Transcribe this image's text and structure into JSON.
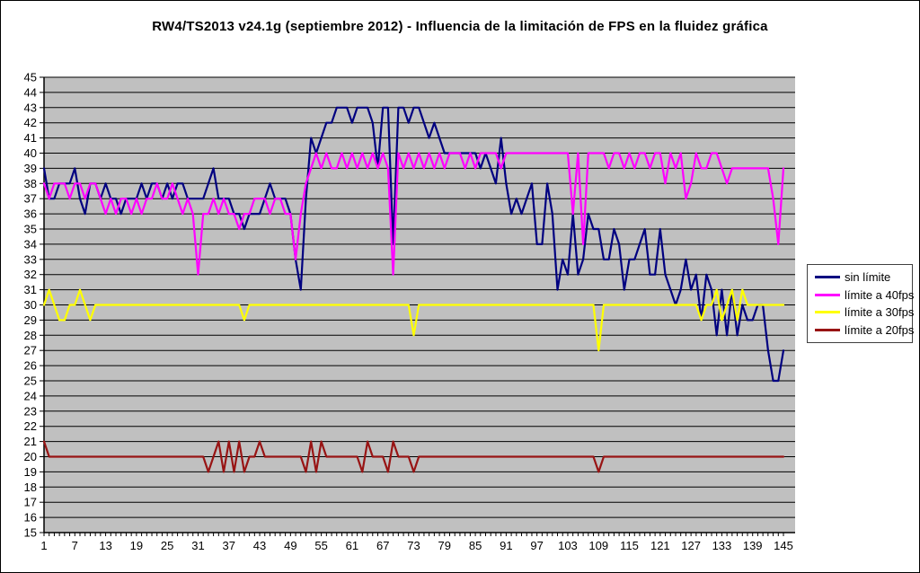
{
  "chart_data": {
    "type": "line",
    "title": "RW4/TS2013 v24.1g (septiembre 2012) - Influencia de la limitación de FPS en la fluidez gráfica",
    "xlabel": "",
    "ylabel": "",
    "x_min": 1,
    "x_max": 145,
    "x_tick_labels": [
      1,
      7,
      13,
      19,
      25,
      31,
      37,
      43,
      49,
      55,
      61,
      67,
      73,
      79,
      85,
      91,
      97,
      103,
      109,
      115,
      121,
      127,
      133,
      139,
      145
    ],
    "ylim": [
      15,
      45
    ],
    "y_tick_step": 1,
    "grid": "horizontal",
    "plot_bg": "#C0C0C0",
    "axis_color": "#000000",
    "gridline_color": "#000000",
    "legend_position": "right",
    "series": [
      {
        "name": "sin límite",
        "color": "#000080",
        "values": [
          39,
          37,
          37,
          38,
          38,
          38,
          39,
          37,
          36,
          38,
          38,
          37,
          38,
          37,
          37,
          36,
          37,
          37,
          37,
          38,
          37,
          38,
          38,
          37,
          38,
          37,
          38,
          38,
          37,
          37,
          37,
          37,
          38,
          39,
          37,
          37,
          37,
          36,
          36,
          35,
          36,
          36,
          36,
          37,
          38,
          37,
          37,
          37,
          36,
          33,
          31,
          37,
          41,
          40,
          41,
          42,
          42,
          43,
          43,
          43,
          42,
          43,
          43,
          43,
          42,
          39,
          43,
          43,
          34,
          43,
          43,
          42,
          43,
          43,
          42,
          41,
          42,
          41,
          40,
          40,
          40,
          40,
          40,
          40,
          40,
          39,
          40,
          39,
          38,
          41,
          38,
          36,
          37,
          36,
          37,
          38,
          34,
          34,
          38,
          36,
          31,
          33,
          32,
          36,
          32,
          33,
          36,
          35,
          35,
          33,
          33,
          35,
          34,
          31,
          33,
          33,
          34,
          35,
          32,
          32,
          35,
          32,
          31,
          30,
          31,
          33,
          31,
          32,
          29,
          32,
          31,
          28,
          31,
          28,
          31,
          28,
          30,
          29,
          29,
          30,
          30,
          27,
          25,
          25,
          27
        ]
      },
      {
        "name": "límite a 40fps",
        "color": "#FF00FF",
        "values": [
          38,
          37,
          38,
          38,
          38,
          37,
          38,
          38,
          37,
          38,
          38,
          37,
          36,
          37,
          36,
          37,
          37,
          36,
          37,
          36,
          37,
          37,
          38,
          37,
          37,
          38,
          37,
          36,
          37,
          36,
          32,
          36,
          36,
          37,
          36,
          37,
          36,
          36,
          35,
          36,
          36,
          37,
          37,
          37,
          36,
          37,
          37,
          36,
          36,
          33,
          36,
          38,
          39,
          40,
          39,
          40,
          39,
          39,
          40,
          39,
          40,
          39,
          40,
          39,
          40,
          39,
          40,
          39,
          32,
          40,
          39,
          40,
          39,
          40,
          39,
          40,
          39,
          40,
          39,
          40,
          40,
          40,
          39,
          40,
          39,
          40,
          40,
          40,
          40,
          39,
          40,
          40,
          40,
          40,
          40,
          40,
          40,
          40,
          40,
          40,
          40,
          40,
          40,
          36,
          40,
          34,
          40,
          40,
          40,
          40,
          39,
          40,
          40,
          39,
          40,
          39,
          40,
          40,
          39,
          40,
          40,
          38,
          40,
          39,
          40,
          37,
          38,
          40,
          39,
          39,
          40,
          40,
          39,
          38,
          39,
          39,
          39,
          39,
          39,
          39,
          39,
          39,
          37,
          34,
          39
        ]
      },
      {
        "name": "límite a 30fps",
        "color": "#FFFF00",
        "values": [
          30,
          31,
          30,
          29,
          29,
          30,
          30,
          31,
          30,
          29,
          30,
          30,
          30,
          30,
          30,
          30,
          30,
          30,
          30,
          30,
          30,
          30,
          30,
          30,
          30,
          30,
          30,
          30,
          30,
          30,
          30,
          30,
          30,
          30,
          30,
          30,
          30,
          30,
          30,
          29,
          30,
          30,
          30,
          30,
          30,
          30,
          30,
          30,
          30,
          30,
          30,
          30,
          30,
          30,
          30,
          30,
          30,
          30,
          30,
          30,
          30,
          30,
          30,
          30,
          30,
          30,
          30,
          30,
          30,
          30,
          30,
          30,
          28,
          30,
          30,
          30,
          30,
          30,
          30,
          30,
          30,
          30,
          30,
          30,
          30,
          30,
          30,
          30,
          30,
          30,
          30,
          30,
          30,
          30,
          30,
          30,
          30,
          30,
          30,
          30,
          30,
          30,
          30,
          30,
          30,
          30,
          30,
          30,
          27,
          30,
          30,
          30,
          30,
          30,
          30,
          30,
          30,
          30,
          30,
          30,
          30,
          30,
          30,
          30,
          30,
          30,
          30,
          30,
          29,
          30,
          30,
          31,
          29,
          30,
          31,
          29,
          31,
          30,
          30,
          30,
          30,
          30,
          30,
          30,
          30
        ]
      },
      {
        "name": "límite a 20fps",
        "color": "#981414",
        "values": [
          21,
          20,
          20,
          20,
          20,
          20,
          20,
          20,
          20,
          20,
          20,
          20,
          20,
          20,
          20,
          20,
          20,
          20,
          20,
          20,
          20,
          20,
          20,
          20,
          20,
          20,
          20,
          20,
          20,
          20,
          20,
          20,
          19,
          20,
          21,
          19,
          21,
          19,
          21,
          19,
          20,
          20,
          21,
          20,
          20,
          20,
          20,
          20,
          20,
          20,
          20,
          19,
          21,
          19,
          21,
          20,
          20,
          20,
          20,
          20,
          20,
          20,
          19,
          21,
          20,
          20,
          20,
          19,
          21,
          20,
          20,
          20,
          19,
          20,
          20,
          20,
          20,
          20,
          20,
          20,
          20,
          20,
          20,
          20,
          20,
          20,
          20,
          20,
          20,
          20,
          20,
          20,
          20,
          20,
          20,
          20,
          20,
          20,
          20,
          20,
          20,
          20,
          20,
          20,
          20,
          20,
          20,
          20,
          19,
          20,
          20,
          20,
          20,
          20,
          20,
          20,
          20,
          20,
          20,
          20,
          20,
          20,
          20,
          20,
          20,
          20,
          20,
          20,
          20,
          20,
          20,
          20,
          20,
          20,
          20,
          20,
          20,
          20,
          20,
          20,
          20,
          20,
          20,
          20,
          20
        ]
      }
    ]
  }
}
